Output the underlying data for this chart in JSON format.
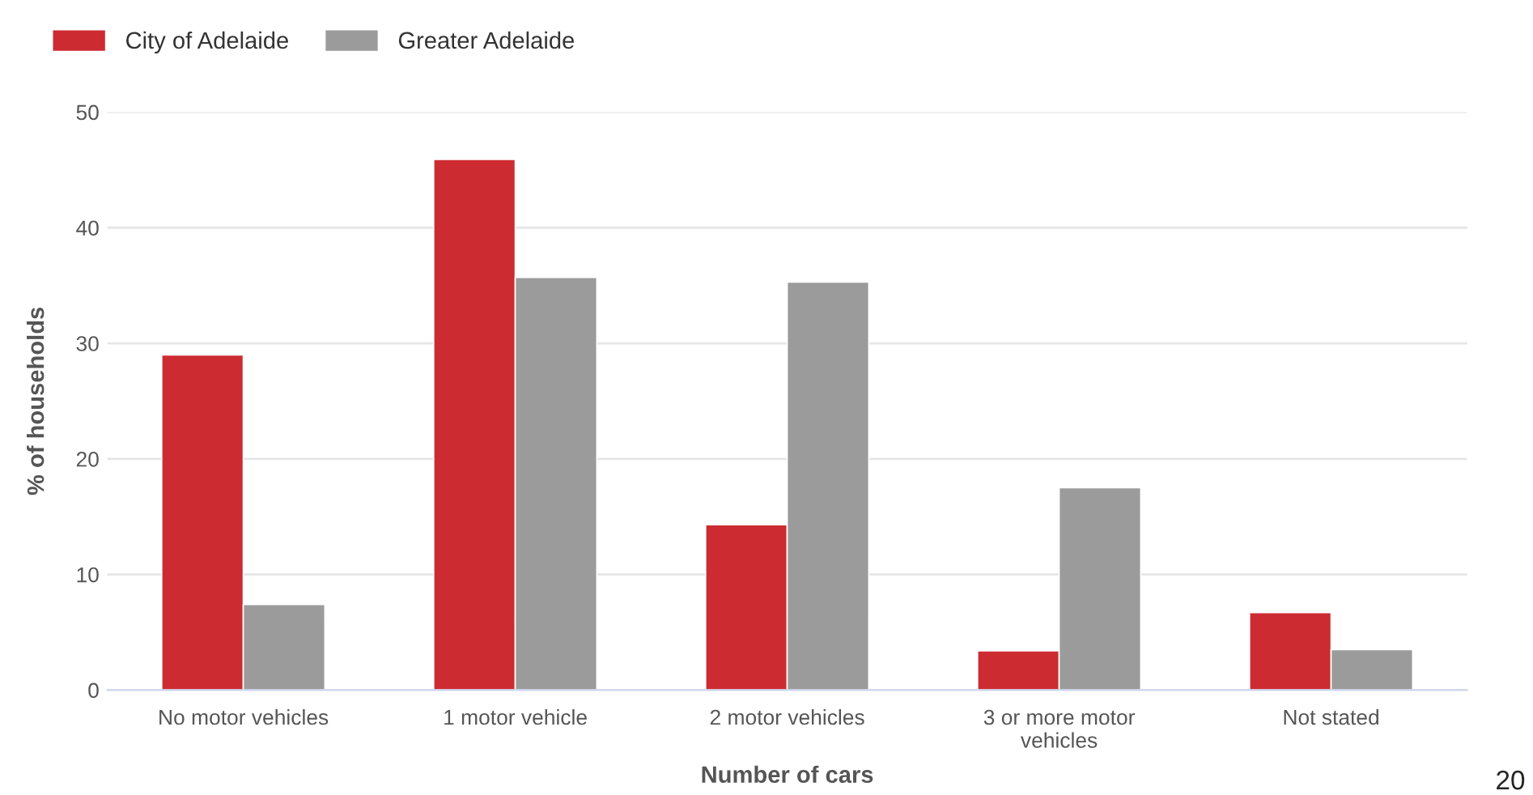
{
  "chart_data": {
    "type": "bar",
    "xlabel": "Number of cars",
    "ylabel": "% of households",
    "categories": [
      "No motor vehicles",
      "1 motor vehicle",
      "2 motor vehicles",
      "3 or more motor\nvehicles",
      "Not stated"
    ],
    "series": [
      {
        "name": "City of Adelaide",
        "color": "#cc2b31",
        "values": [
          29.0,
          45.9,
          14.3,
          3.4,
          6.7
        ]
      },
      {
        "name": "Greater Adelaide",
        "color": "#9b9b9b",
        "values": [
          7.4,
          35.7,
          35.3,
          17.5,
          3.5
        ]
      }
    ],
    "ylim": [
      0,
      50
    ],
    "yticks": [
      0,
      10,
      20,
      30,
      40,
      50
    ],
    "grid": "y",
    "legend": "top left",
    "annotations": [
      "20"
    ]
  }
}
